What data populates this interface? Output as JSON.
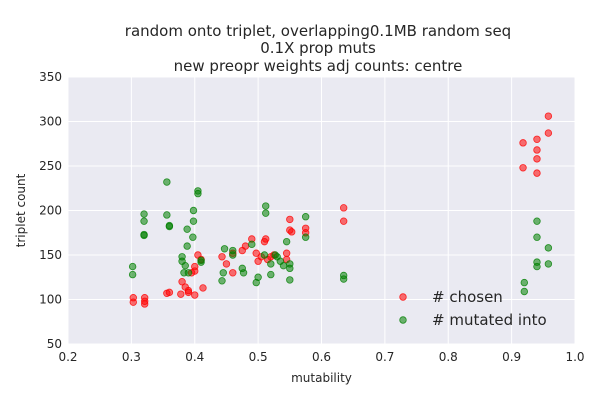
{
  "chart_data": {
    "type": "scatter",
    "title_lines": [
      "random onto triplet,  overlapping0.1MB random seq",
      "0.1X prop muts",
      "new preopr weights  adj counts: centre"
    ],
    "xlabel": "mutability",
    "ylabel": "triplet count",
    "xlim": [
      0.2,
      1.0
    ],
    "ylim": [
      50,
      350
    ],
    "xticks": [
      "0.2",
      "0.3",
      "0.4",
      "0.5",
      "0.6",
      "0.7",
      "0.8",
      "0.9",
      "1.0"
    ],
    "yticks": [
      "50",
      "100",
      "150",
      "200",
      "250",
      "300",
      "350"
    ],
    "grid": true,
    "legend_position": "lower-right",
    "series": [
      {
        "name": "# chosen",
        "color": "#ff0000",
        "points": [
          [
            0.303,
            97
          ],
          [
            0.303,
            102
          ],
          [
            0.321,
            95
          ],
          [
            0.321,
            98
          ],
          [
            0.321,
            102
          ],
          [
            0.356,
            107
          ],
          [
            0.36,
            108
          ],
          [
            0.378,
            106
          ],
          [
            0.38,
            120
          ],
          [
            0.385,
            114
          ],
          [
            0.39,
            108
          ],
          [
            0.39,
            110
          ],
          [
            0.4,
            105
          ],
          [
            0.395,
            130
          ],
          [
            0.4,
            137
          ],
          [
            0.4,
            132
          ],
          [
            0.405,
            150
          ],
          [
            0.41,
            145
          ],
          [
            0.413,
            113
          ],
          [
            0.443,
            148
          ],
          [
            0.45,
            140
          ],
          [
            0.46,
            130
          ],
          [
            0.46,
            152
          ],
          [
            0.475,
            155
          ],
          [
            0.48,
            160
          ],
          [
            0.49,
            168
          ],
          [
            0.497,
            152
          ],
          [
            0.5,
            143
          ],
          [
            0.505,
            148
          ],
          [
            0.51,
            165
          ],
          [
            0.512,
            168
          ],
          [
            0.515,
            145
          ],
          [
            0.52,
            148
          ],
          [
            0.525,
            150
          ],
          [
            0.545,
            152
          ],
          [
            0.545,
            145
          ],
          [
            0.55,
            178
          ],
          [
            0.55,
            190
          ],
          [
            0.553,
            176
          ],
          [
            0.575,
            175
          ],
          [
            0.575,
            180
          ],
          [
            0.635,
            188
          ],
          [
            0.635,
            203
          ],
          [
            0.918,
            248
          ],
          [
            0.918,
            276
          ],
          [
            0.94,
            242
          ],
          [
            0.94,
            258
          ],
          [
            0.94,
            268
          ],
          [
            0.94,
            280
          ],
          [
            0.958,
            287
          ],
          [
            0.958,
            306
          ]
        ]
      },
      {
        "name": "# mutated into",
        "color": "#008000",
        "points": [
          [
            0.302,
            128
          ],
          [
            0.302,
            137
          ],
          [
            0.32,
            172
          ],
          [
            0.32,
            173
          ],
          [
            0.32,
            188
          ],
          [
            0.32,
            196
          ],
          [
            0.356,
            232
          ],
          [
            0.356,
            195
          ],
          [
            0.36,
            182
          ],
          [
            0.36,
            183
          ],
          [
            0.38,
            143
          ],
          [
            0.38,
            148
          ],
          [
            0.383,
            130
          ],
          [
            0.385,
            138
          ],
          [
            0.388,
            160
          ],
          [
            0.388,
            179
          ],
          [
            0.39,
            130
          ],
          [
            0.397,
            170
          ],
          [
            0.398,
            188
          ],
          [
            0.398,
            200
          ],
          [
            0.405,
            219
          ],
          [
            0.405,
            222
          ],
          [
            0.41,
            142
          ],
          [
            0.41,
            144
          ],
          [
            0.443,
            121
          ],
          [
            0.445,
            130
          ],
          [
            0.447,
            157
          ],
          [
            0.46,
            150
          ],
          [
            0.46,
            155
          ],
          [
            0.475,
            135
          ],
          [
            0.477,
            130
          ],
          [
            0.49,
            162
          ],
          [
            0.497,
            119
          ],
          [
            0.5,
            125
          ],
          [
            0.51,
            150
          ],
          [
            0.512,
            197
          ],
          [
            0.512,
            205
          ],
          [
            0.52,
            128
          ],
          [
            0.52,
            140
          ],
          [
            0.527,
            150
          ],
          [
            0.53,
            148
          ],
          [
            0.535,
            143
          ],
          [
            0.54,
            138
          ],
          [
            0.545,
            165
          ],
          [
            0.55,
            135
          ],
          [
            0.55,
            122
          ],
          [
            0.55,
            140
          ],
          [
            0.575,
            170
          ],
          [
            0.575,
            193
          ],
          [
            0.635,
            123
          ],
          [
            0.635,
            127
          ],
          [
            0.92,
            119
          ],
          [
            0.92,
            109
          ],
          [
            0.94,
            137
          ],
          [
            0.94,
            142
          ],
          [
            0.94,
            170
          ],
          [
            0.94,
            188
          ],
          [
            0.958,
            140
          ],
          [
            0.958,
            158
          ]
        ]
      }
    ]
  }
}
